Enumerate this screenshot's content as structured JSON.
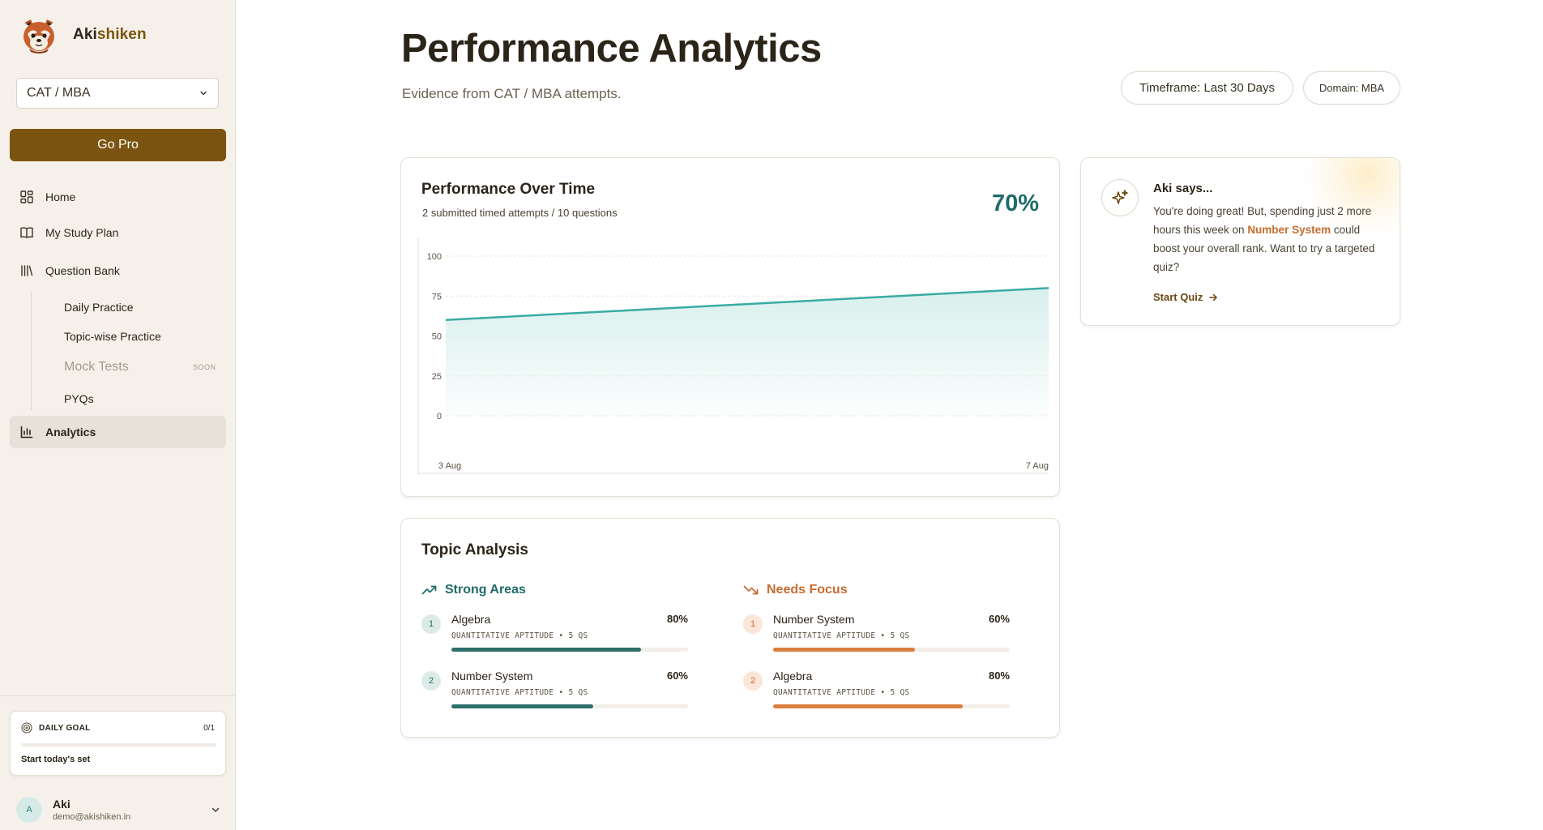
{
  "brand": {
    "name_primary": "Aki",
    "name_accent": "shiken",
    "logo": "red-panda-logo"
  },
  "sidebar": {
    "domain_select": {
      "value": "CAT / MBA",
      "icon": "chevron-down-icon"
    },
    "go_pro_label": "Go Pro",
    "nav": {
      "home": {
        "label": "Home",
        "icon": "grid-icon"
      },
      "study_plan": {
        "label": "My Study Plan",
        "icon": "book-icon"
      },
      "question_bank": {
        "label": "Question Bank",
        "icon": "library-icon"
      },
      "daily_practice": {
        "label": "Daily Practice"
      },
      "topic_practice": {
        "label": "Topic-wise Practice"
      },
      "mock_tests": {
        "label": "Mock Tests",
        "badge": "SOON"
      },
      "pyqs": {
        "label": "PYQs"
      },
      "analytics": {
        "label": "Analytics",
        "icon": "bar-chart-icon"
      }
    },
    "daily_goal": {
      "title": "DAILY GOAL",
      "count": "0/1",
      "progress": 0,
      "cta": "Start today's set"
    },
    "user": {
      "initial": "A",
      "name": "Aki",
      "email": "demo@akishiken.in"
    }
  },
  "header": {
    "title": "Performance Analytics",
    "subtitle": "Evidence from CAT / MBA attempts.",
    "timeframe_pill": "Timeframe: Last 30 Days",
    "domain_pill": "Domain: MBA"
  },
  "performance": {
    "title": "Performance Over Time",
    "subtitle": "2 submitted timed attempts / 10 questions",
    "score": "70%"
  },
  "chart_data": {
    "type": "area",
    "x": [
      "3 Aug",
      "7 Aug"
    ],
    "values": [
      60,
      80
    ],
    "ylim": [
      0,
      100
    ],
    "yticks": [
      0,
      25,
      50,
      75,
      100
    ],
    "grid": true,
    "colors": {
      "line": "#3aaba4",
      "fill": "#d6efec"
    }
  },
  "aki": {
    "title": "Aki says...",
    "body_1": "You're doing great! But, spending just 2 more hours this week on ",
    "highlight": "Number System",
    "body_2": " could boost your overall rank. Want to try a targeted quiz?",
    "cta": "Start Quiz",
    "icon": "sparkles-icon"
  },
  "topics": {
    "title": "Topic Analysis",
    "strong_label": "Strong Areas",
    "focus_label": "Needs Focus",
    "strong": [
      {
        "rank": "1",
        "name": "Algebra",
        "pct_label": "80%",
        "pct": 80,
        "meta": "QUANTITATIVE APTITUDE • 5 QS"
      },
      {
        "rank": "2",
        "name": "Number System",
        "pct_label": "60%",
        "pct": 60,
        "meta": "QUANTITATIVE APTITUDE • 5 QS"
      }
    ],
    "focus": [
      {
        "rank": "1",
        "name": "Number System",
        "pct_label": "60%",
        "pct": 60,
        "meta": "QUANTITATIVE APTITUDE • 5 QS"
      },
      {
        "rank": "2",
        "name": "Algebra",
        "pct_label": "80%",
        "pct": 80,
        "meta": "QUANTITATIVE APTITUDE • 5 QS"
      }
    ]
  },
  "colors": {
    "brand": "#7a5410",
    "teal": "#1f6b68",
    "orange": "#c76c2e",
    "sidebar_bg": "#f5f1ea"
  }
}
